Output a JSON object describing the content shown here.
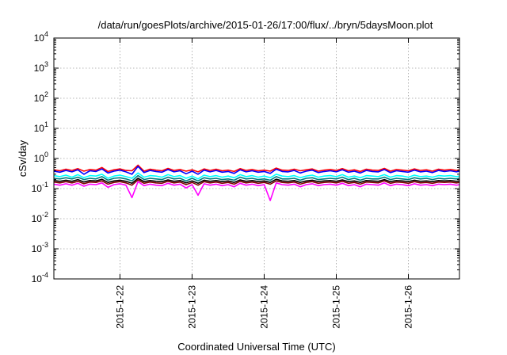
{
  "chart_data": {
    "type": "line",
    "title": "/data/run/goesPlots/archive/2015-01-26/17:00/flux/../bryn/5daysMoon.plot",
    "xlabel": "Coordinated Universal Time (UTC)",
    "ylabel": "cSv/day",
    "yscale": "log",
    "ylim": [
      0.0001,
      10000
    ],
    "xlim": [
      "2015-01-21T02:00",
      "2015-01-26T17:00"
    ],
    "grid": true,
    "legend": "none",
    "y_ticks": [
      {
        "value": 0.0001,
        "base": "10",
        "exp": "-4"
      },
      {
        "value": 0.001,
        "base": "10",
        "exp": "-3"
      },
      {
        "value": 0.01,
        "base": "10",
        "exp": "-2"
      },
      {
        "value": 0.1,
        "base": "10",
        "exp": "-1"
      },
      {
        "value": 1,
        "base": "10",
        "exp": "0"
      },
      {
        "value": 10,
        "base": "10",
        "exp": "1"
      },
      {
        "value": 100,
        "base": "10",
        "exp": "2"
      },
      {
        "value": 1000,
        "base": "10",
        "exp": "3"
      },
      {
        "value": 10000,
        "base": "10",
        "exp": "4"
      }
    ],
    "x_ticks": [
      {
        "value": "2015-01-22T00:00",
        "label": "2015-1-22"
      },
      {
        "value": "2015-01-23T00:00",
        "label": "2015-1-23"
      },
      {
        "value": "2015-01-24T00:00",
        "label": "2015-1-24"
      },
      {
        "value": "2015-01-25T00:00",
        "label": "2015-1-25"
      },
      {
        "value": "2015-01-26T00:00",
        "label": "2015-1-26"
      }
    ],
    "x": [
      "2015-01-21T02:00",
      "2015-01-21T04:00",
      "2015-01-21T06:00",
      "2015-01-21T08:00",
      "2015-01-21T10:00",
      "2015-01-21T12:00",
      "2015-01-21T14:00",
      "2015-01-21T16:00",
      "2015-01-21T18:00",
      "2015-01-21T20:00",
      "2015-01-21T22:00",
      "2015-01-22T00:00",
      "2015-01-22T02:00",
      "2015-01-22T04:00",
      "2015-01-22T06:00",
      "2015-01-22T08:00",
      "2015-01-22T10:00",
      "2015-01-22T12:00",
      "2015-01-22T14:00",
      "2015-01-22T16:00",
      "2015-01-22T18:00",
      "2015-01-22T20:00",
      "2015-01-22T22:00",
      "2015-01-23T00:00",
      "2015-01-23T02:00",
      "2015-01-23T04:00",
      "2015-01-23T06:00",
      "2015-01-23T08:00",
      "2015-01-23T10:00",
      "2015-01-23T12:00",
      "2015-01-23T14:00",
      "2015-01-23T16:00",
      "2015-01-23T18:00",
      "2015-01-23T20:00",
      "2015-01-23T22:00",
      "2015-01-24T00:00",
      "2015-01-24T02:00",
      "2015-01-24T04:00",
      "2015-01-24T06:00",
      "2015-01-24T08:00",
      "2015-01-24T10:00",
      "2015-01-24T12:00",
      "2015-01-24T14:00",
      "2015-01-24T16:00",
      "2015-01-24T18:00",
      "2015-01-24T20:00",
      "2015-01-24T22:00",
      "2015-01-25T00:00",
      "2015-01-25T02:00",
      "2015-01-25T04:00",
      "2015-01-25T06:00",
      "2015-01-25T08:00",
      "2015-01-25T10:00",
      "2015-01-25T12:00",
      "2015-01-25T14:00",
      "2015-01-25T16:00",
      "2015-01-25T18:00",
      "2015-01-25T20:00",
      "2015-01-25T22:00",
      "2015-01-26T00:00",
      "2015-01-26T02:00",
      "2015-01-26T04:00",
      "2015-01-26T06:00",
      "2015-01-26T08:00",
      "2015-01-26T10:00",
      "2015-01-26T12:00",
      "2015-01-26T14:00",
      "2015-01-26T16:00",
      "2015-01-26T17:00"
    ],
    "series": [
      {
        "color": "#ff0000",
        "values": [
          0.42,
          0.39,
          0.44,
          0.4,
          0.46,
          0.38,
          0.43,
          0.41,
          0.5,
          0.37,
          0.42,
          0.45,
          0.4,
          0.39,
          0.6,
          0.38,
          0.44,
          0.41,
          0.39,
          0.47,
          0.4,
          0.43,
          0.38,
          0.42,
          0.36,
          0.45,
          0.4,
          0.44,
          0.39,
          0.41,
          0.37,
          0.46,
          0.4,
          0.43,
          0.39,
          0.41,
          0.38,
          0.48,
          0.41,
          0.4,
          0.44,
          0.39,
          0.42,
          0.45,
          0.38,
          0.41,
          0.43,
          0.4,
          0.46,
          0.39,
          0.42,
          0.37,
          0.44,
          0.41,
          0.4,
          0.47,
          0.38,
          0.43,
          0.41,
          0.39,
          0.45,
          0.4,
          0.42,
          0.38,
          0.44,
          0.41,
          0.43,
          0.4,
          0.42
        ]
      },
      {
        "color": "#0000ff",
        "values": [
          0.38,
          0.35,
          0.4,
          0.36,
          0.42,
          0.3,
          0.39,
          0.37,
          0.45,
          0.33,
          0.38,
          0.41,
          0.36,
          0.3,
          0.55,
          0.34,
          0.4,
          0.37,
          0.35,
          0.43,
          0.36,
          0.39,
          0.31,
          0.38,
          0.3,
          0.41,
          0.36,
          0.4,
          0.35,
          0.37,
          0.32,
          0.42,
          0.36,
          0.39,
          0.35,
          0.37,
          0.32,
          0.44,
          0.37,
          0.36,
          0.4,
          0.33,
          0.38,
          0.41,
          0.34,
          0.37,
          0.39,
          0.36,
          0.42,
          0.35,
          0.38,
          0.33,
          0.4,
          0.37,
          0.36,
          0.43,
          0.34,
          0.39,
          0.37,
          0.35,
          0.41,
          0.36,
          0.38,
          0.34,
          0.4,
          0.37,
          0.39,
          0.36,
          0.38
        ]
      },
      {
        "color": "#00ffff",
        "values": [
          0.27,
          0.25,
          0.28,
          0.24,
          0.29,
          0.23,
          0.27,
          0.26,
          0.3,
          0.22,
          0.26,
          0.28,
          0.25,
          0.22,
          0.33,
          0.24,
          0.27,
          0.26,
          0.24,
          0.29,
          0.25,
          0.27,
          0.22,
          0.26,
          0.21,
          0.28,
          0.25,
          0.27,
          0.24,
          0.26,
          0.23,
          0.29,
          0.25,
          0.27,
          0.24,
          0.26,
          0.23,
          0.3,
          0.26,
          0.25,
          0.27,
          0.23,
          0.26,
          0.28,
          0.24,
          0.26,
          0.27,
          0.25,
          0.29,
          0.24,
          0.26,
          0.23,
          0.27,
          0.26,
          0.25,
          0.29,
          0.24,
          0.27,
          0.26,
          0.24,
          0.28,
          0.25,
          0.26,
          0.24,
          0.27,
          0.26,
          0.27,
          0.25,
          0.26
        ]
      },
      {
        "color": "#008080",
        "values": [
          0.22,
          0.21,
          0.23,
          0.21,
          0.24,
          0.2,
          0.22,
          0.21,
          0.25,
          0.19,
          0.22,
          0.23,
          0.21,
          0.18,
          0.27,
          0.2,
          0.22,
          0.21,
          0.2,
          0.24,
          0.21,
          0.22,
          0.18,
          0.22,
          0.18,
          0.23,
          0.21,
          0.22,
          0.2,
          0.21,
          0.19,
          0.24,
          0.21,
          0.22,
          0.2,
          0.21,
          0.19,
          0.25,
          0.21,
          0.21,
          0.22,
          0.19,
          0.22,
          0.23,
          0.2,
          0.21,
          0.22,
          0.21,
          0.24,
          0.2,
          0.22,
          0.19,
          0.22,
          0.21,
          0.21,
          0.24,
          0.2,
          0.22,
          0.21,
          0.2,
          0.23,
          0.21,
          0.22,
          0.2,
          0.22,
          0.21,
          0.22,
          0.21,
          0.22
        ]
      },
      {
        "color": "#000000",
        "values": [
          0.185,
          0.175,
          0.19,
          0.175,
          0.2,
          0.165,
          0.185,
          0.18,
          0.205,
          0.16,
          0.18,
          0.19,
          0.175,
          0.15,
          0.22,
          0.17,
          0.185,
          0.175,
          0.17,
          0.195,
          0.175,
          0.185,
          0.155,
          0.18,
          0.15,
          0.19,
          0.175,
          0.185,
          0.17,
          0.18,
          0.16,
          0.195,
          0.175,
          0.185,
          0.17,
          0.18,
          0.16,
          0.205,
          0.18,
          0.175,
          0.185,
          0.16,
          0.18,
          0.19,
          0.17,
          0.18,
          0.185,
          0.175,
          0.195,
          0.17,
          0.18,
          0.16,
          0.185,
          0.18,
          0.175,
          0.2,
          0.17,
          0.185,
          0.18,
          0.17,
          0.19,
          0.175,
          0.18,
          0.17,
          0.185,
          0.18,
          0.185,
          0.175,
          0.18
        ]
      },
      {
        "color": "#800000",
        "values": [
          0.165,
          0.155,
          0.17,
          0.155,
          0.175,
          0.145,
          0.165,
          0.16,
          0.18,
          0.14,
          0.16,
          0.17,
          0.155,
          0.13,
          0.195,
          0.15,
          0.165,
          0.155,
          0.15,
          0.175,
          0.155,
          0.165,
          0.135,
          0.16,
          0.13,
          0.17,
          0.155,
          0.165,
          0.15,
          0.16,
          0.14,
          0.175,
          0.155,
          0.165,
          0.15,
          0.16,
          0.14,
          0.18,
          0.16,
          0.155,
          0.165,
          0.14,
          0.16,
          0.17,
          0.15,
          0.16,
          0.165,
          0.155,
          0.175,
          0.15,
          0.16,
          0.14,
          0.165,
          0.16,
          0.155,
          0.18,
          0.15,
          0.165,
          0.16,
          0.15,
          0.17,
          0.155,
          0.16,
          0.15,
          0.165,
          0.16,
          0.165,
          0.155,
          0.16
        ]
      },
      {
        "color": "#ff00ff",
        "values": [
          0.14,
          0.13,
          0.145,
          0.13,
          0.15,
          0.12,
          0.14,
          0.135,
          0.155,
          0.11,
          0.135,
          0.145,
          0.13,
          0.05,
          0.17,
          0.125,
          0.14,
          0.13,
          0.125,
          0.15,
          0.13,
          0.14,
          0.105,
          0.135,
          0.06,
          0.145,
          0.13,
          0.14,
          0.125,
          0.135,
          0.115,
          0.15,
          0.13,
          0.14,
          0.125,
          0.135,
          0.04,
          0.155,
          0.135,
          0.13,
          0.14,
          0.115,
          0.135,
          0.145,
          0.125,
          0.135,
          0.14,
          0.13,
          0.15,
          0.125,
          0.135,
          0.115,
          0.14,
          0.135,
          0.13,
          0.155,
          0.125,
          0.14,
          0.135,
          0.125,
          0.145,
          0.13,
          0.135,
          0.125,
          0.14,
          0.135,
          0.14,
          0.13,
          0.135
        ]
      }
    ]
  }
}
